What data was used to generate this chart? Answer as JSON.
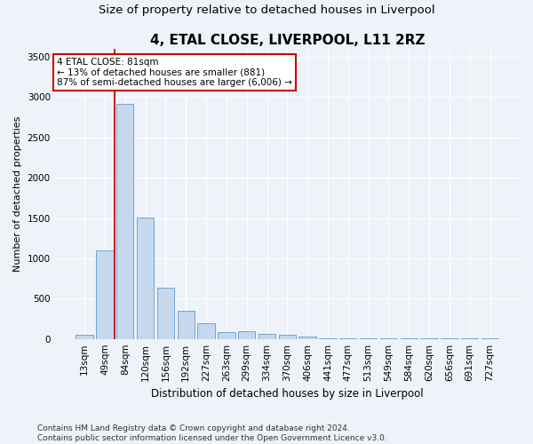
{
  "title": "4, ETAL CLOSE, LIVERPOOL, L11 2RZ",
  "subtitle": "Size of property relative to detached houses in Liverpool",
  "xlabel": "Distribution of detached houses by size in Liverpool",
  "ylabel": "Number of detached properties",
  "categories": [
    "13sqm",
    "49sqm",
    "84sqm",
    "120sqm",
    "156sqm",
    "192sqm",
    "227sqm",
    "263sqm",
    "299sqm",
    "334sqm",
    "370sqm",
    "406sqm",
    "441sqm",
    "477sqm",
    "513sqm",
    "549sqm",
    "584sqm",
    "620sqm",
    "656sqm",
    "691sqm",
    "727sqm"
  ],
  "values": [
    55,
    1100,
    2920,
    1510,
    640,
    345,
    190,
    90,
    100,
    60,
    55,
    30,
    10,
    10,
    10,
    5,
    5,
    5,
    3,
    3,
    3
  ],
  "bar_color": "#c5d8ed",
  "bar_edge_color": "#6699cc",
  "vline_x_index": 2,
  "annotation_line1": "4 ETAL CLOSE: 81sqm",
  "annotation_line2": "← 13% of detached houses are smaller (881)",
  "annotation_line3": "87% of semi-detached houses are larger (6,006) →",
  "annotation_box_facecolor": "#ffffff",
  "annotation_box_edgecolor": "#cc0000",
  "vline_color": "#cc0000",
  "ylim": [
    0,
    3600
  ],
  "yticks": [
    0,
    500,
    1000,
    1500,
    2000,
    2500,
    3000,
    3500
  ],
  "footer1": "Contains HM Land Registry data © Crown copyright and database right 2024.",
  "footer2": "Contains public sector information licensed under the Open Government Licence v3.0.",
  "bg_color": "#eef2f9",
  "grid_color": "#ffffff",
  "title_fontsize": 11,
  "subtitle_fontsize": 9.5,
  "ylabel_fontsize": 8,
  "xlabel_fontsize": 8.5,
  "tick_fontsize": 7.5,
  "annot_fontsize": 7.5,
  "footer_fontsize": 6.5
}
